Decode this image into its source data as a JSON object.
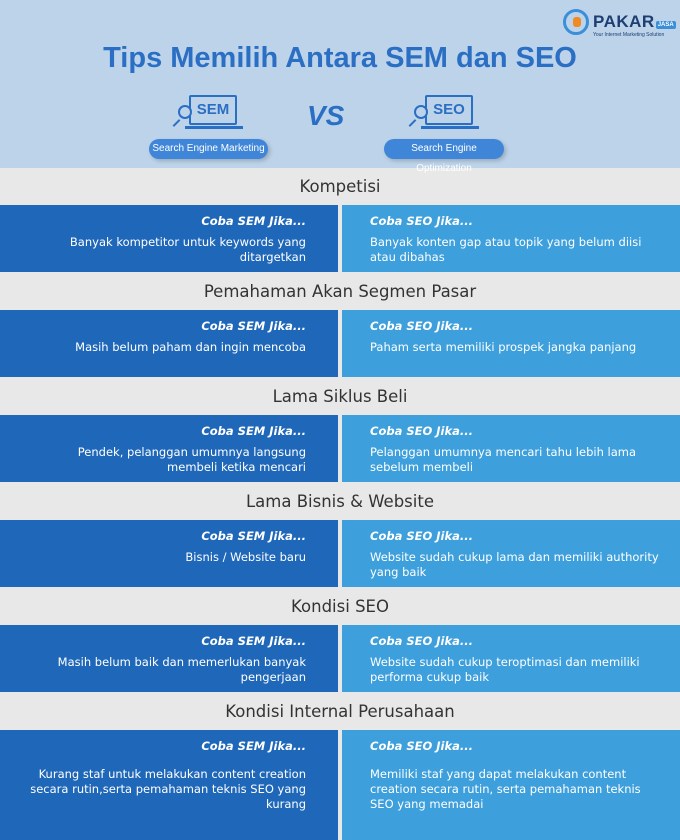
{
  "logo": {
    "brand": "PAKAR",
    "badge": "JASA",
    "tagline": "Your Internet Marketing Solution"
  },
  "title": "Tips Memilih Antara SEM dan SEO",
  "sem": {
    "icon_label": "SEM",
    "pill": "Search Engine Marketing"
  },
  "vs": "VS",
  "seo": {
    "icon_label": "SEO",
    "pill": "Search Engine Optimization"
  },
  "colors": {
    "header_bg": "#bdd3ea",
    "sem_box": "#1f67b8",
    "seo_box": "#3d9fdb",
    "section_bg": "#e8e8e8",
    "title": "#2a6fc4"
  },
  "sections": [
    {
      "title": "Kompetisi",
      "sem_head": "Coba SEM Jika...",
      "sem_text": "Banyak kompetitor untuk keywords yang ditargetkan",
      "seo_head": "Coba SEO Jika...",
      "seo_text": "Banyak konten gap atau topik yang belum diisi atau dibahas"
    },
    {
      "title": "Pemahaman Akan Segmen Pasar",
      "sem_head": "Coba SEM Jika...",
      "sem_text": "Masih belum paham dan ingin mencoba",
      "seo_head": "Coba SEO Jika...",
      "seo_text": "Paham serta memiliki prospek jangka panjang"
    },
    {
      "title": "Lama Siklus Beli",
      "sem_head": "Coba SEM Jika...",
      "sem_text": "Pendek, pelanggan umumnya langsung membeli ketika mencari",
      "seo_head": "Coba SEO Jika...",
      "seo_text": "Pelanggan umumnya mencari tahu lebih lama sebelum membeli"
    },
    {
      "title": "Lama Bisnis & Website",
      "sem_head": "Coba SEM Jika...",
      "sem_text": "Bisnis / Website baru",
      "seo_head": "Coba SEO Jika...",
      "seo_text": "Website sudah cukup lama dan memiliki authority yang baik"
    },
    {
      "title": "Kondisi SEO",
      "sem_head": "Coba SEM Jika...",
      "sem_text": "Masih belum baik dan memerlukan banyak pengerjaan",
      "seo_head": "Coba SEO Jika...",
      "seo_text": "Website sudah cukup teroptimasi dan memiliki performa cukup baik"
    },
    {
      "title": "Kondisi Internal Perusahaan",
      "sem_head": "Coba SEM Jika...",
      "sem_text": "Kurang staf untuk melakukan content creation secara rutin,serta pemahaman teknis SEO yang kurang",
      "seo_head": "Coba SEO Jika...",
      "seo_text": "Memiliki staf yang dapat melakukan content creation secara rutin, serta pemahaman teknis SEO yang memadai"
    }
  ]
}
